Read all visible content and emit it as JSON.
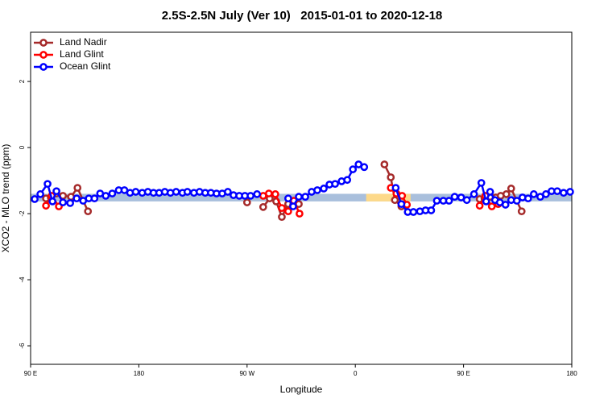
{
  "chart_data": {
    "type": "line",
    "title": "2.5S-2.5N July (Ver 10)   2015-01-01 to 2020-12-18",
    "x_label": "Longitude",
    "y_label": "XCO2 - MLO trend (ppm)",
    "xlim": [
      90,
      540
    ],
    "xticks": [
      {
        "value": 90,
        "label": "90 E"
      },
      {
        "value": 180,
        "label": "180"
      },
      {
        "value": 270,
        "label": "90 W"
      },
      {
        "value": 360,
        "label": "0"
      },
      {
        "value": 450,
        "label": "90 E"
      },
      {
        "value": 540,
        "label": "180"
      }
    ],
    "ylim": [
      -6.56,
      3.49
    ],
    "yticks": [
      -6,
      -4,
      -2,
      0,
      2
    ],
    "legend": "top-left",
    "bands": [
      {
        "x": [
          90,
          540
        ],
        "y": [
          -1.63,
          -1.4
        ],
        "color": "#a9bfdc"
      },
      {
        "x": [
          369,
          406
        ],
        "y": [
          -1.63,
          -1.4
        ],
        "color": "#fdd98a"
      }
    ],
    "series": [
      {
        "name": "Land Nadir",
        "color": "#a52a2a",
        "x": [
          102.8,
          106.8,
          111.5,
          116.9,
          123.6,
          129,
          137.7,
          null,
          270,
          null,
          283.4,
          288.8,
          294.2,
          298.9,
          304.2,
          308.3,
          313,
          null,
          384.2,
          389.5,
          392.9,
          398.3,
          null,
          463.4,
          467.4,
          472.1,
          476.8,
          480.9,
          485.6,
          489.6,
          498.3
        ],
        "values": [
          -1.54,
          -1.51,
          -1.39,
          -1.46,
          -1.49,
          -1.22,
          -1.93,
          null,
          -1.66,
          null,
          -1.8,
          -1.54,
          -1.63,
          -2.1,
          -1.71,
          -1.73,
          -1.71,
          null,
          -0.51,
          -0.9,
          -1.59,
          -1.78,
          null,
          -1.56,
          -1.54,
          -1.49,
          -1.51,
          -1.46,
          -1.41,
          -1.24,
          -1.93
        ]
      },
      {
        "name": "Land Glint",
        "color": "#ff0000",
        "x": [
          102.8,
          107.5,
          113.5,
          null,
          283.4,
          288.1,
          293.5,
          298.9,
          304.2,
          308.9,
          313.6,
          null,
          389.5,
          394.2,
          398.9,
          402.9,
          null,
          463.4,
          468.1,
          473.5,
          478.8
        ],
        "values": [
          -1.76,
          -1.46,
          -1.78,
          null,
          -1.46,
          -1.39,
          -1.41,
          -1.83,
          -1.93,
          -1.61,
          -2.0,
          null,
          -1.22,
          -1.39,
          -1.46,
          -1.73,
          null,
          -1.76,
          -1.46,
          -1.78,
          -1.71
        ]
      },
      {
        "name": "Ocean Glint",
        "color": "#0000ff",
        "x": [
          93.4,
          98.1,
          104.1,
          108.2,
          111.5,
          116.9,
          122.9,
          128.3,
          133.7,
          138.4,
          143.1,
          147.8,
          152.5,
          157.9,
          163.3,
          168,
          172.7,
          177.4,
          182.8,
          187.5,
          192.2,
          196.9,
          201.6,
          206.3,
          211,
          216.3,
          220.4,
          225.8,
          230.5,
          235.2,
          239.9,
          244.6,
          249.3,
          254,
          258.7,
          263.5,
          268.2,
          272.9,
          278.3,
          null,
          304.2,
          308.3,
          313,
          318.4,
          323.7,
          328.4,
          333.8,
          338.5,
          343.2,
          348.6,
          353.3,
          358,
          362.7,
          367.4,
          null,
          393.6,
          398.3,
          403.6,
          408.3,
          413.7,
          418.4,
          423.1,
          427.8,
          433.2,
          437.9,
          442.6,
          448,
          452.7,
          458.7,
          464.8,
          468.8,
          472.1,
          476.2,
          480.2,
          484.9,
          489.6,
          494.3,
          499,
          503.7,
          508.4,
          513.8,
          518.5,
          523.2,
          527.9,
          533.2,
          538.6
        ],
        "values": [
          -1.56,
          -1.41,
          -1.1,
          -1.63,
          -1.32,
          -1.66,
          -1.68,
          -1.54,
          -1.61,
          -1.54,
          -1.54,
          -1.39,
          -1.46,
          -1.39,
          -1.29,
          -1.29,
          -1.37,
          -1.34,
          -1.37,
          -1.34,
          -1.37,
          -1.37,
          -1.34,
          -1.37,
          -1.34,
          -1.37,
          -1.34,
          -1.37,
          -1.34,
          -1.37,
          -1.37,
          -1.39,
          -1.39,
          -1.34,
          -1.44,
          -1.46,
          -1.46,
          -1.46,
          -1.41,
          null,
          -1.54,
          -1.78,
          -1.49,
          -1.49,
          -1.34,
          -1.29,
          -1.24,
          -1.12,
          -1.1,
          -1.02,
          -0.98,
          -0.66,
          -0.51,
          -0.59,
          null,
          -1.22,
          -1.71,
          -1.95,
          -1.95,
          -1.93,
          -1.9,
          -1.9,
          -1.61,
          -1.61,
          -1.61,
          -1.49,
          -1.51,
          -1.59,
          -1.41,
          -1.07,
          -1.63,
          -1.34,
          -1.59,
          -1.66,
          -1.73,
          -1.59,
          -1.61,
          -1.51,
          -1.54,
          -1.41,
          -1.49,
          -1.41,
          -1.32,
          -1.32,
          -1.37,
          -1.34
        ]
      }
    ]
  }
}
